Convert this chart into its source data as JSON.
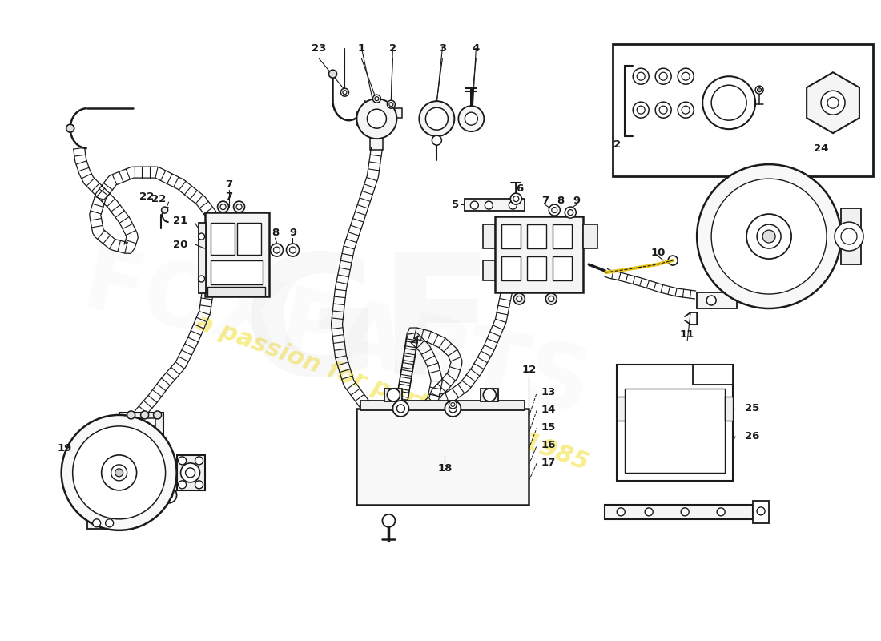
{
  "bg_color": "#ffffff",
  "lc": "#1a1a1a",
  "watermark_text": "a passion for parts since 1985",
  "watermark_color": "#f0d800",
  "watermark_alpha": 0.45,
  "logo_color": "#d0d0d0",
  "logo_alpha": 0.15
}
